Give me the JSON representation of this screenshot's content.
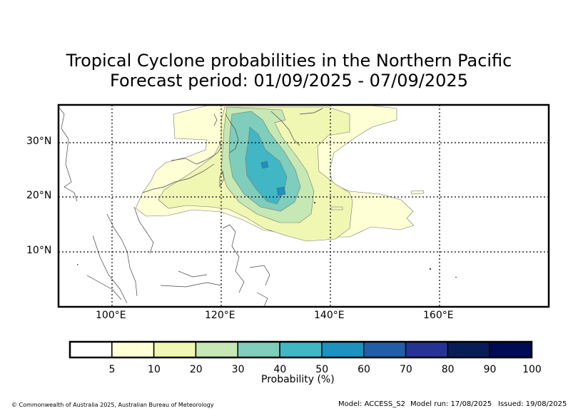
{
  "title_line1": "Tropical Cyclone probabilities in the Northern Pacific",
  "title_line2": "Forecast period: 01/09/2025 - 07/09/2025",
  "map": {
    "lat_labels": [
      "30°N",
      "20°N",
      "10°N"
    ],
    "lon_labels": [
      "100°E",
      "120°E",
      "140°E",
      "160°E"
    ],
    "extent": {
      "lon": [
        90,
        180
      ],
      "lat": [
        0,
        37
      ]
    },
    "grid": true
  },
  "colorbar": {
    "label": "Probability (%)",
    "ticks": [
      "5",
      "10",
      "20",
      "30",
      "40",
      "50",
      "60",
      "70",
      "80",
      "90",
      "100"
    ],
    "colors": [
      "#ffffff",
      "#ffffd6",
      "#eff7b3",
      "#c6e8b4",
      "#7fcdbb",
      "#41b6c4",
      "#1d91c0",
      "#225ea8",
      "#253494",
      "#081d58",
      "#000b55"
    ]
  },
  "footer": {
    "copyright": "© Commonwealth of Australia 2025, Australian Bureau of Meteorology",
    "model": "Model: ACCESS_S2",
    "model_run": "Model run: 17/08/2025",
    "issued": "Issued: 19/08/2025"
  }
}
